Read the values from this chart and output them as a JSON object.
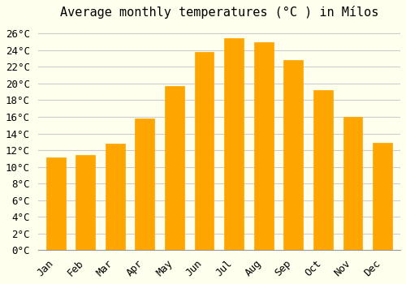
{
  "title": "Average monthly temperatures (°C ) in Mílos",
  "months": [
    "Jan",
    "Feb",
    "Mar",
    "Apr",
    "May",
    "Jun",
    "Jul",
    "Aug",
    "Sep",
    "Oct",
    "Nov",
    "Dec"
  ],
  "temperatures": [
    11.1,
    11.4,
    12.8,
    15.8,
    19.7,
    23.8,
    25.4,
    25.0,
    22.8,
    19.2,
    16.0,
    12.9
  ],
  "bar_color": "#FFA500",
  "bar_edge_color": "#E8940A",
  "background_color": "#FFFFEE",
  "grid_color": "#CCCCCC",
  "ylim": [
    0,
    27
  ],
  "yticks": [
    0,
    2,
    4,
    6,
    8,
    10,
    12,
    14,
    16,
    18,
    20,
    22,
    24,
    26
  ],
  "title_fontsize": 11,
  "tick_fontsize": 9
}
